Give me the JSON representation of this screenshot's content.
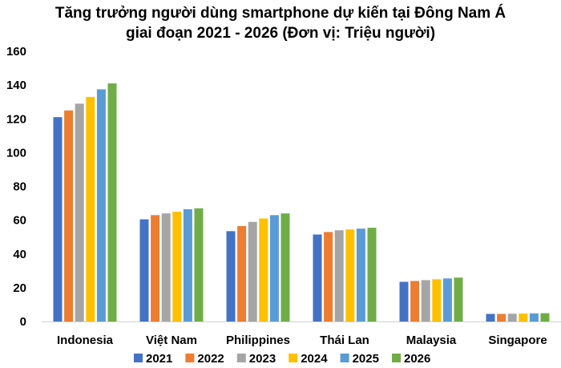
{
  "chart_data": {
    "type": "bar",
    "title_lines": [
      "Tăng trưởng người dùng smartphone dự kiến tại Đông Nam Á",
      "giai đoạn 2021 - 2026 (Đơn vị: Triệu người)"
    ],
    "categories": [
      "Indonesia",
      "Việt Nam",
      "Philippines",
      "Thái Lan",
      "Malaysia",
      "Singapore"
    ],
    "series": [
      {
        "name": "2021",
        "color": "#4472C4",
        "values": [
          121,
          60.5,
          53.5,
          51.5,
          23.5,
          4.5
        ]
      },
      {
        "name": "2022",
        "color": "#ED7D31",
        "values": [
          125,
          63,
          56.5,
          53,
          24,
          4.5
        ]
      },
      {
        "name": "2023",
        "color": "#A5A5A5",
        "values": [
          129,
          64,
          59,
          54,
          24.5,
          4.6
        ]
      },
      {
        "name": "2024",
        "color": "#FFC000",
        "values": [
          133,
          65,
          61,
          54.5,
          25,
          4.7
        ]
      },
      {
        "name": "2025",
        "color": "#5B9BD5",
        "values": [
          137.5,
          66.5,
          63,
          55,
          25.5,
          4.8
        ]
      },
      {
        "name": "2026",
        "color": "#70AD47",
        "values": [
          141,
          67,
          64,
          55.5,
          26,
          4.9
        ]
      }
    ],
    "ylim": [
      0,
      160
    ],
    "yticks": [
      0,
      20,
      40,
      60,
      80,
      100,
      120,
      140,
      160
    ],
    "grid": false,
    "legend": "bottom"
  }
}
